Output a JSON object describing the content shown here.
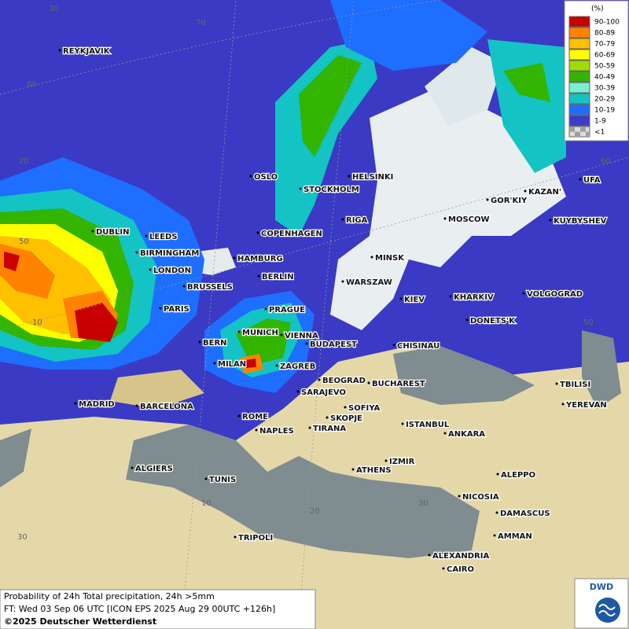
{
  "legend": {
    "unit": "(%)",
    "items": [
      {
        "label": "90-100",
        "color": "#c80000"
      },
      {
        "label": "80-89",
        "color": "#ff8200"
      },
      {
        "label": "70-79",
        "color": "#ffc000"
      },
      {
        "label": "60-69",
        "color": "#ffff00"
      },
      {
        "label": "50-59",
        "color": "#a0dc00"
      },
      {
        "label": "40-49",
        "color": "#32b400"
      },
      {
        "label": "30-39",
        "color": "#78f0d2"
      },
      {
        "label": "20-29",
        "color": "#14c3c3"
      },
      {
        "label": "10-19",
        "color": "#1e6eff"
      },
      {
        "label": "1-9",
        "color": "#3c3cc8"
      },
      {
        "label": "<1",
        "color": "#a0a0a0"
      }
    ]
  },
  "graticule": [
    "30",
    "70",
    "60",
    "20",
    "50",
    "10",
    "10",
    "20",
    "30",
    "30",
    "60",
    "50"
  ],
  "cities": [
    "REYKJAVIK",
    "DUBLIN",
    "LEEDS",
    "BIRMINGHAM",
    "LONDON",
    "BRUSSELS",
    "PARIS",
    "HAMBURG",
    "COPENHAGEN",
    "OSLO",
    "STOCKHOLM",
    "HELSINKI",
    "RIGA",
    "BERLIN",
    "WARSZAW",
    "MINSK",
    "MOSCOW",
    "GOR'KIY",
    "KAZAN'",
    "UFA",
    "KUYBYSHEV",
    "PRAGUE",
    "MUNICH",
    "VIENNA",
    "BUDAPEST",
    "BERN",
    "MILAN",
    "ZAGREB",
    "KIEV",
    "KHARKIV",
    "VOLGOGRAD",
    "DONETS'K",
    "CHISINAU",
    "BEOGRAD",
    "BUCHAREST",
    "SARAJEVO",
    "SOFIYA",
    "SKOPJE",
    "TIRANA",
    "ROME",
    "NAPLES",
    "MADRID",
    "BARCELONA",
    "ISTANBUL",
    "ANKARA",
    "TBILISI",
    "YEREVAN",
    "ALGIERS",
    "TUNIS",
    "IZMIR",
    "ATHENS",
    "ALEPPO",
    "NICOSIA",
    "DAMASCUS",
    "AMMAN",
    "TRIPOLI",
    "ALEXANDRIA",
    "CAIRO"
  ],
  "footer": {
    "line1": "Probability of 24h Total precipitation, 24h >5mm",
    "line2": "FT: Wed 03 Sep 06 UTC [ICON EPS 2025 Aug 29 00UTC +126h]",
    "line3": "©2025 Deutscher Wetterdienst"
  },
  "logo": "DWD"
}
